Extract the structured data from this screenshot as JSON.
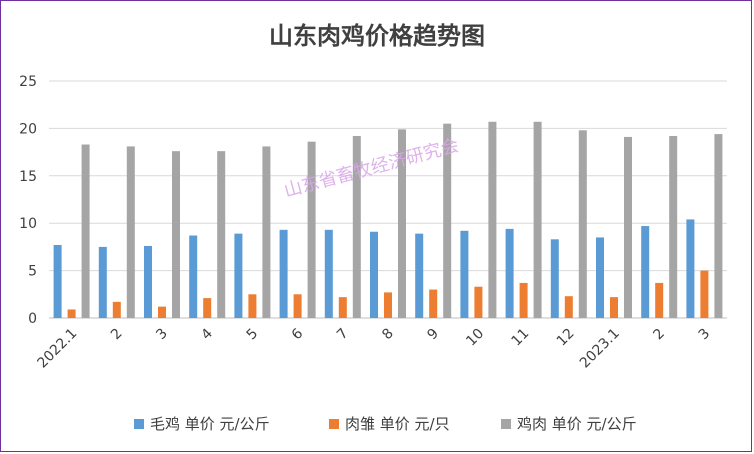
{
  "chart_data": {
    "type": "bar",
    "title": "山东肉鸡价格趋势图",
    "watermark": "山东省畜牧经济研究会",
    "categories": [
      "2022.1",
      "2",
      "3",
      "4",
      "5",
      "6",
      "7",
      "8",
      "9",
      "10",
      "11",
      "12",
      "2023.1",
      "2",
      "3"
    ],
    "ylim": [
      0,
      25
    ],
    "yticks": [
      0,
      5,
      10,
      15,
      20,
      25
    ],
    "grid": true,
    "legend_position": "bottom",
    "series": [
      {
        "name": "毛鸡 单价 元/公斤",
        "color": "#5b9bd5",
        "values": [
          7.7,
          7.5,
          7.6,
          8.7,
          8.9,
          9.3,
          9.3,
          9.1,
          8.9,
          9.2,
          9.4,
          8.3,
          8.5,
          9.7,
          10.4
        ]
      },
      {
        "name": "肉雏 单价 元/只",
        "color": "#ed7d31",
        "values": [
          0.9,
          1.7,
          1.2,
          2.1,
          2.5,
          2.5,
          2.2,
          2.7,
          3.0,
          3.3,
          3.7,
          2.3,
          2.2,
          3.7,
          5.0
        ]
      },
      {
        "name": "鸡肉 单价 元/公斤",
        "color": "#a5a5a5",
        "values": [
          18.3,
          18.1,
          17.6,
          17.6,
          18.1,
          18.6,
          19.2,
          19.9,
          20.5,
          20.7,
          20.7,
          19.8,
          19.1,
          19.2,
          19.4
        ]
      }
    ]
  }
}
